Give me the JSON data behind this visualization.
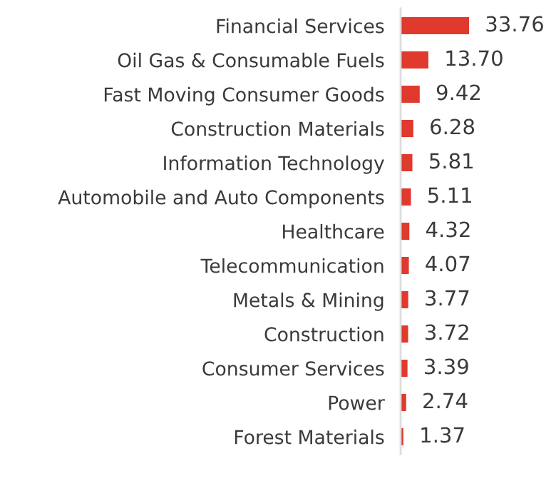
{
  "chart_data": {
    "type": "bar",
    "orientation": "horizontal",
    "categories": [
      "Financial Services",
      "Oil Gas & Consumable Fuels",
      "Fast Moving Consumer Goods",
      "Construction Materials",
      "Information Technology",
      "Automobile and Auto Components",
      "Healthcare",
      "Telecommunication",
      "Metals & Mining",
      "Construction",
      "Consumer Services",
      "Power",
      "Forest Materials"
    ],
    "values": [
      33.76,
      13.7,
      9.42,
      6.28,
      5.81,
      5.11,
      4.32,
      4.07,
      3.77,
      3.72,
      3.39,
      2.74,
      1.37
    ],
    "value_labels": [
      "33.76",
      "13.70",
      "9.42",
      "6.28",
      "5.81",
      "5.11",
      "4.32",
      "4.07",
      "3.77",
      "3.72",
      "3.39",
      "2.74",
      "1.37"
    ],
    "color": "#e03a2e"
  }
}
